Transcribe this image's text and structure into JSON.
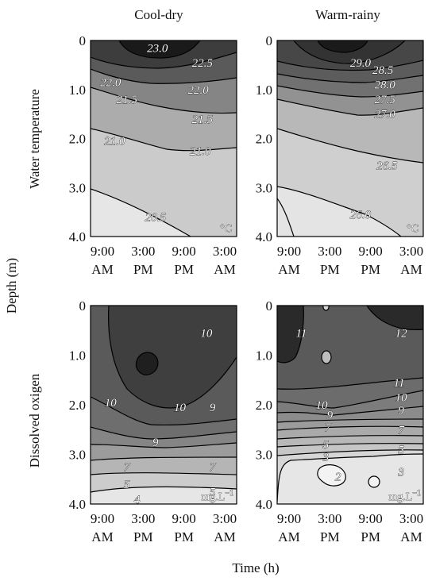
{
  "figure": {
    "column_titles": [
      "Cool-dry",
      "Warm-rainy"
    ],
    "row_titles": [
      "Water temperature",
      "Dissolved oxigen"
    ],
    "ylabel": "Depth (m)",
    "xlabel": "Time (h)",
    "y_ticks": [
      "0",
      "1.0",
      "2.0",
      "3.0",
      "4.0"
    ],
    "x_ticks": [
      {
        "time": "9:00",
        "period": "AM"
      },
      {
        "time": "3:00",
        "period": "PM"
      },
      {
        "time": "9:00",
        "period": "PM"
      },
      {
        "time": "3:00",
        "period": "AM"
      }
    ]
  },
  "chart_data": [
    {
      "type": "heatmap",
      "panel": "temperature-cool-dry",
      "unit": "°C",
      "y_range": [
        0,
        4
      ],
      "contour_labels": [
        {
          "text": "23.0",
          "x": 1.35,
          "y": 0.15
        },
        {
          "text": "22.5",
          "x": 2.45,
          "y": 0.45
        },
        {
          "text": "22.0",
          "x": 0.2,
          "y": 0.85
        },
        {
          "text": "22.0",
          "x": 2.35,
          "y": 1.0
        },
        {
          "text": "21.5",
          "x": 0.6,
          "y": 1.2
        },
        {
          "text": "21.5",
          "x": 2.45,
          "y": 1.6
        },
        {
          "text": "21.0",
          "x": 0.3,
          "y": 2.05
        },
        {
          "text": "21.0",
          "x": 2.4,
          "y": 2.25
        },
        {
          "text": "20.5",
          "x": 1.3,
          "y": 3.6
        }
      ],
      "contour_levels": [
        {
          "level": "> 23.0",
          "color": "#1a1a1a"
        },
        {
          "level": "22.5",
          "color": "#3d3d3d"
        },
        {
          "level": "22.0",
          "color": "#5a5a5a"
        },
        {
          "level": "21.5",
          "color": "#858585"
        },
        {
          "level": "21.0",
          "color": "#acacac"
        },
        {
          "level": "20.5",
          "color": "#cbcbcb"
        },
        {
          "level": "< 20.5",
          "color": "#e6e6e6"
        }
      ]
    },
    {
      "type": "heatmap",
      "panel": "temperature-warm-rainy",
      "unit": "°C",
      "y_range": [
        0,
        4
      ],
      "contour_labels": [
        {
          "text": "29.0",
          "x": 1.75,
          "y": 0.45
        },
        {
          "text": "28.5",
          "x": 2.3,
          "y": 0.6
        },
        {
          "text": "28.0",
          "x": 2.35,
          "y": 0.9
        },
        {
          "text": "27.5",
          "x": 2.35,
          "y": 1.2
        },
        {
          "text": "27.0",
          "x": 2.35,
          "y": 1.5
        },
        {
          "text": "26.5",
          "x": 2.4,
          "y": 2.55
        },
        {
          "text": "26.0",
          "x": 1.75,
          "y": 3.55
        }
      ],
      "contour_levels": [
        {
          "level": "> 29.0",
          "color": "#1a1a1a"
        },
        {
          "level": "29.0",
          "color": "#333333"
        },
        {
          "level": "28.5",
          "color": "#474747"
        },
        {
          "level": "28.0",
          "color": "#5c5c5c"
        },
        {
          "level": "27.5",
          "color": "#717171"
        },
        {
          "level": "27.0",
          "color": "#929292"
        },
        {
          "level": "26.5",
          "color": "#b8b8b8"
        },
        {
          "level": "< 26.0",
          "color": "#e4e4e4"
        }
      ]
    },
    {
      "type": "heatmap",
      "panel": "oxygen-cool-dry",
      "unit": "mg.L",
      "unit_superscript": "−1",
      "y_range": [
        0,
        4
      ],
      "contour_labels": [
        {
          "text": "10",
          "x": 2.55,
          "y": 0.55
        },
        {
          "text": "10",
          "x": 0.2,
          "y": 1.95
        },
        {
          "text": "10",
          "x": 1.9,
          "y": 2.05
        },
        {
          "text": "9",
          "x": 2.7,
          "y": 2.05
        },
        {
          "text": "9",
          "x": 1.3,
          "y": 2.75
        },
        {
          "text": "7",
          "x": 0.6,
          "y": 3.25
        },
        {
          "text": "7",
          "x": 2.7,
          "y": 3.25
        },
        {
          "text": "5",
          "x": 0.6,
          "y": 3.6
        },
        {
          "text": "5",
          "x": 2.7,
          "y": 3.75
        },
        {
          "text": "4",
          "x": 0.85,
          "y": 3.9
        }
      ],
      "contour_levels": [
        {
          "level": "> 11",
          "color": "#2a2a2a"
        },
        {
          "level": "10",
          "color": "#3f3f3f"
        },
        {
          "level": "9",
          "color": "#5a5a5a"
        },
        {
          "level": "8",
          "color": "#6e6e6e"
        },
        {
          "level": "7",
          "color": "#858585"
        },
        {
          "level": "6",
          "color": "#9c9c9c"
        },
        {
          "level": "5",
          "color": "#b5b5b5"
        },
        {
          "level": "4",
          "color": "#cccccc"
        },
        {
          "level": "< 4",
          "color": "#e6e6e6"
        }
      ]
    },
    {
      "type": "heatmap",
      "panel": "oxygen-warm-rainy",
      "unit": "mg.L",
      "unit_superscript": "−1",
      "y_range": [
        0,
        4
      ],
      "contour_labels": [
        {
          "text": "11",
          "x": 0.3,
          "y": 0.55
        },
        {
          "text": "12",
          "x": 2.75,
          "y": 0.55
        },
        {
          "text": "11",
          "x": 2.7,
          "y": 1.55
        },
        {
          "text": "10",
          "x": 2.75,
          "y": 1.85
        },
        {
          "text": "9",
          "x": 2.75,
          "y": 2.1
        },
        {
          "text": "10",
          "x": 0.8,
          "y": 2.0
        },
        {
          "text": "9",
          "x": 1.0,
          "y": 2.2
        },
        {
          "text": "7",
          "x": 0.95,
          "y": 2.45
        },
        {
          "text": "7",
          "x": 2.75,
          "y": 2.5
        },
        {
          "text": "5",
          "x": 0.9,
          "y": 2.8
        },
        {
          "text": "5",
          "x": 2.75,
          "y": 2.9
        },
        {
          "text": "3",
          "x": 0.9,
          "y": 3.05
        },
        {
          "text": "3",
          "x": 2.75,
          "y": 3.35
        },
        {
          "text": "2",
          "x": 1.2,
          "y": 3.45
        }
      ],
      "contour_levels": [
        {
          "level": "12",
          "color": "#2a2a2a"
        },
        {
          "level": "11",
          "color": "#5a5a5a"
        },
        {
          "level": "10",
          "color": "#6c6c6c"
        },
        {
          "level": "9",
          "color": "#7c7c7c"
        },
        {
          "level": "8",
          "color": "#8c8c8c"
        },
        {
          "level": "7",
          "color": "#9c9c9c"
        },
        {
          "level": "6",
          "color": "#aaaaaa"
        },
        {
          "level": "5",
          "color": "#b8b8b8"
        },
        {
          "level": "4",
          "color": "#c6c6c6"
        },
        {
          "level": "3",
          "color": "#d6d6d6"
        },
        {
          "level": "< 3",
          "color": "#e6e6e6"
        }
      ]
    }
  ]
}
